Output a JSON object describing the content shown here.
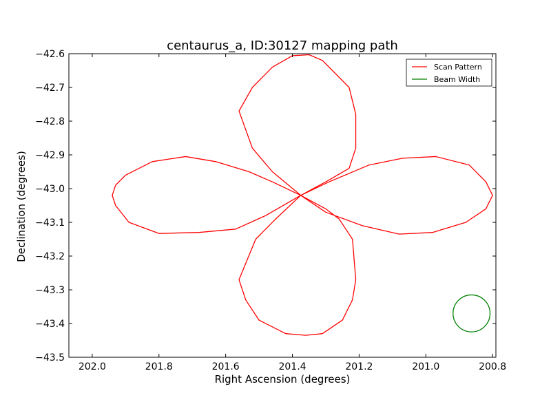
{
  "chart_data": {
    "type": "line",
    "title": "centaurus_a, ID:30127 mapping path",
    "xlabel": "Right Ascension (degrees)",
    "ylabel": "Declination (degrees)",
    "xlim": [
      202.07,
      200.79
    ],
    "ylim": [
      -43.5,
      -42.6
    ],
    "x_inverted": true,
    "xticks": [
      202.0,
      201.8,
      201.6,
      201.4,
      201.2,
      201.0,
      200.8
    ],
    "xtick_labels": [
      "202.0",
      "201.8",
      "201.6",
      "201.4",
      "201.2",
      "201.0",
      "200.8"
    ],
    "yticks": [
      -42.6,
      -42.7,
      -42.8,
      -42.9,
      -43.0,
      -43.1,
      -43.2,
      -43.3,
      -43.4,
      -43.5
    ],
    "ytick_labels": [
      "−42.6",
      "−42.7",
      "−42.8",
      "−42.9",
      "−43.0",
      "−43.1",
      "−43.2",
      "−43.3",
      "−43.4",
      "−43.5"
    ],
    "grid": false,
    "legend_position": "top-right",
    "series": [
      {
        "name": "Scan Pattern",
        "color": "#ff0000",
        "x": [
          201.375,
          201.46,
          201.52,
          201.56,
          201.52,
          201.46,
          201.4,
          201.35,
          201.31,
          201.23,
          201.21,
          201.21,
          201.23,
          201.3,
          201.375,
          201.46,
          201.53,
          201.63,
          201.72,
          201.82,
          201.9,
          201.93,
          201.94,
          201.93,
          201.89,
          201.8,
          201.68,
          201.57,
          201.48,
          201.375,
          201.45,
          201.51,
          201.56,
          201.54,
          201.5,
          201.42,
          201.36,
          201.31,
          201.25,
          201.22,
          201.21,
          201.22,
          201.26,
          201.3,
          201.375,
          201.29,
          201.17,
          201.07,
          200.97,
          200.87,
          200.82,
          200.8,
          200.82,
          200.88,
          200.98,
          201.08,
          201.19,
          201.3,
          201.375
        ],
        "y": [
          -43.02,
          -42.95,
          -42.88,
          -42.77,
          -42.7,
          -42.64,
          -42.606,
          -42.603,
          -42.62,
          -42.7,
          -42.78,
          -42.88,
          -42.94,
          -42.98,
          -43.02,
          -42.98,
          -42.95,
          -42.92,
          -42.905,
          -42.92,
          -42.96,
          -42.99,
          -43.02,
          -43.05,
          -43.1,
          -43.133,
          -43.13,
          -43.12,
          -43.08,
          -43.02,
          -43.09,
          -43.15,
          -43.27,
          -43.33,
          -43.39,
          -43.43,
          -43.435,
          -43.43,
          -43.39,
          -43.33,
          -43.27,
          -43.15,
          -43.09,
          -43.06,
          -43.02,
          -42.98,
          -42.93,
          -42.91,
          -42.905,
          -42.93,
          -42.98,
          -43.02,
          -43.06,
          -43.1,
          -43.13,
          -43.135,
          -43.11,
          -43.07,
          -43.02
        ]
      },
      {
        "name": "Beam Width",
        "color": "#008000",
        "center": [
          200.863,
          -43.37
        ],
        "radius_deg": 0.0555
      }
    ]
  }
}
